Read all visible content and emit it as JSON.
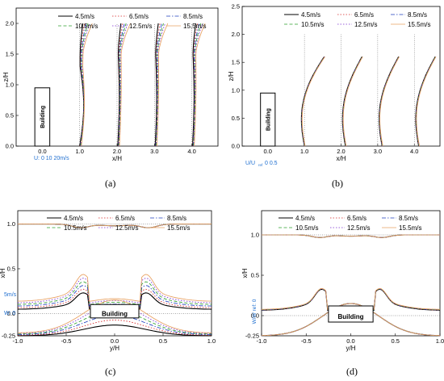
{
  "legend_labels": [
    "4.5m/s",
    "6.5m/s",
    "8.5m/s",
    "10.5m/s",
    "12.5m/s",
    "15.5m/s"
  ],
  "series_colors": [
    "#000000",
    "#d62728",
    "#1f3fbf",
    "#2ca02c",
    "#7b2fd0",
    "#e8a060"
  ],
  "series_dash": [
    "solid",
    "dotted",
    "dash-dot",
    "dashed",
    "dotted",
    "solid"
  ],
  "colors": {
    "reference_scale": "#1f6fd0",
    "building_outline": "#000000",
    "guide_line": "#555555"
  },
  "building_label": "Building",
  "chart_data": [
    {
      "type": "line",
      "panel_label": "(a)",
      "xlabel": "x/H",
      "ylabel": "z/H",
      "xlim": [
        -0.7,
        4.7
      ],
      "ylim": [
        0,
        2.25
      ],
      "x_ticks": [
        "0.0",
        "1.0",
        "2.0",
        "3.0",
        "4.0"
      ],
      "y_ticks": [
        "0.0",
        "0.5",
        "1.0",
        "1.5",
        "2.0"
      ],
      "building": {
        "x": [
          -0.2,
          0.2
        ],
        "z": [
          0,
          0.95
        ]
      },
      "profile_stations": [
        1.0,
        2.0,
        3.0,
        4.0
      ],
      "scale_note": "U: 0   10  20m/s",
      "series": [
        {
          "name": "4.5m/s",
          "speed_ms": 4.5
        },
        {
          "name": "6.5m/s",
          "speed_ms": 6.5
        },
        {
          "name": "8.5m/s",
          "speed_ms": 8.5
        },
        {
          "name": "10.5m/s",
          "speed_ms": 10.5
        },
        {
          "name": "12.5m/s",
          "speed_ms": 12.5
        },
        {
          "name": "15.5m/s",
          "speed_ms": 15.5
        }
      ]
    },
    {
      "type": "line",
      "panel_label": "(b)",
      "xlabel": "x/H",
      "ylabel": "z/H",
      "xlim": [
        -0.7,
        4.7
      ],
      "ylim": [
        0,
        2.5
      ],
      "x_ticks": [
        "0.0",
        "1.0",
        "2.0",
        "3.0",
        "4.0"
      ],
      "y_ticks": [
        "0.0",
        "0.5",
        "1.0",
        "1.5",
        "2.0",
        "2.5"
      ],
      "building": {
        "x": [
          -0.2,
          0.2
        ],
        "z": [
          0,
          0.95
        ]
      },
      "profile_stations": [
        1.0,
        2.0,
        3.0,
        4.0
      ],
      "scale_note": "U/U",
      "scale_note_sub": "ref",
      "scale_values": "0      0.5",
      "series": [
        {
          "name": "4.5m/s"
        },
        {
          "name": "6.5m/s"
        },
        {
          "name": "8.5m/s"
        },
        {
          "name": "10.5m/s"
        },
        {
          "name": "12.5m/s"
        },
        {
          "name": "15.5m/s"
        }
      ]
    },
    {
      "type": "line",
      "panel_label": "(c)",
      "xlabel": "y/H",
      "ylabel": "x/H",
      "xlim": [
        -1.0,
        1.0
      ],
      "ylim": [
        -0.25,
        1.15
      ],
      "x_ticks": [
        "-1.0",
        "-0.5",
        "0.0",
        "0.5",
        "1.0"
      ],
      "y_ticks": [
        "-0.25",
        "0.0",
        "0.5",
        "1.0"
      ],
      "building": {
        "y": [
          -0.25,
          0.25
        ],
        "x": [
          -0.05,
          0.1
        ]
      },
      "profile_stations": [
        1.0,
        0.0,
        -0.25
      ],
      "scale_note": "5m/s",
      "scale_note_2": "W: 0",
      "series": [
        {
          "name": "4.5m/s"
        },
        {
          "name": "6.5m/s"
        },
        {
          "name": "8.5m/s"
        },
        {
          "name": "10.5m/s"
        },
        {
          "name": "12.5m/s"
        },
        {
          "name": "15.5m/s"
        }
      ]
    },
    {
      "type": "line",
      "panel_label": "(d)",
      "xlabel": "y/H",
      "ylabel": "x/H",
      "xlim": [
        -1.0,
        1.0
      ],
      "ylim": [
        -0.25,
        1.3
      ],
      "x_ticks": [
        "-1.0",
        "-0.5",
        "0.0",
        "0.5",
        "1.0"
      ],
      "y_ticks": [
        "-0.25",
        "0.0",
        "0.5",
        "1.0"
      ],
      "building": {
        "y": [
          -0.25,
          0.25
        ],
        "x": [
          -0.08,
          0.12
        ]
      },
      "profile_stations": [
        1.0,
        0.0,
        -0.25
      ],
      "scale_note": "W/W ref: 0",
      "series": [
        {
          "name": "4.5m/s"
        },
        {
          "name": "6.5m/s"
        },
        {
          "name": "8.5m/s"
        },
        {
          "name": "10.5m/s"
        },
        {
          "name": "12.5m/s"
        },
        {
          "name": "15.5m/s"
        }
      ]
    }
  ]
}
